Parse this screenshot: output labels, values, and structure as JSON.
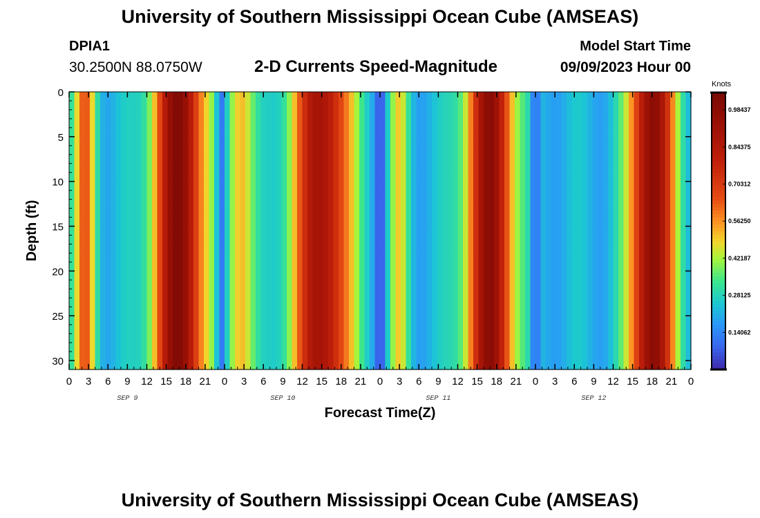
{
  "header": {
    "title": "University of Southern Mississippi Ocean Cube (AMSEAS)",
    "station_id": "DPIA1",
    "station_coords": "30.2500N  88.0750W",
    "subtitle": "2-D Currents Speed-Magnitude",
    "model_label": "Model Start Time",
    "model_date": "09/09/2023 Hour 00"
  },
  "footer": {
    "title": "University of Southern Mississippi Ocean Cube (AMSEAS)"
  },
  "chart_data": {
    "type": "heatmap",
    "title": "2-D Currents Speed-Magnitude",
    "xlabel": "Forecast Time(Z)",
    "ylabel": "Depth (ft)",
    "xlim": [
      0,
      96
    ],
    "ylim": [
      31,
      0
    ],
    "x_ticks": [
      "0",
      "3",
      "6",
      "9",
      "12",
      "15",
      "18",
      "21",
      "0",
      "3",
      "6",
      "9",
      "12",
      "15",
      "18",
      "21",
      "0",
      "3",
      "6",
      "9",
      "12",
      "15",
      "18",
      "21",
      "0",
      "3",
      "6",
      "9",
      "12",
      "15",
      "18",
      "21",
      "0"
    ],
    "y_ticks": [
      0,
      5,
      10,
      15,
      20,
      25,
      30
    ],
    "day_labels": [
      "SEP 9",
      "SEP 10",
      "SEP 11",
      "SEP 12"
    ],
    "colorbar": {
      "unit": "Knots",
      "min": 0,
      "max": 1.05,
      "tick_values": [
        0.98437,
        0.84375,
        0.70312,
        0.5625,
        0.42187,
        0.28125,
        0.14062
      ],
      "tick_labels": [
        "0.98437",
        "0.84375",
        "0.70312",
        "0.56250",
        "0.42187",
        "0.28125",
        "0.14062"
      ]
    },
    "speed_peaks": [
      {
        "time_hr": 2.5,
        "surface_speed": 0.62,
        "width_hr": 1.7,
        "taper_depth_ft": 26
      },
      {
        "time_hr": 17,
        "surface_speed": 1.0,
        "width_hr": 4.0,
        "taper_depth_ft": 22
      },
      {
        "time_hr": 26.5,
        "surface_speed": 0.55,
        "width_hr": 2.0,
        "taper_depth_ft": 12
      },
      {
        "time_hr": 39,
        "surface_speed": 0.9,
        "width_hr": 4.6,
        "taper_depth_ft": 22
      },
      {
        "time_hr": 51,
        "surface_speed": 0.46,
        "width_hr": 1.5,
        "taper_depth_ft": 28
      },
      {
        "time_hr": 65,
        "surface_speed": 0.95,
        "width_hr": 3.8,
        "taper_depth_ft": 22
      },
      {
        "time_hr": 90,
        "surface_speed": 1.0,
        "width_hr": 3.4,
        "taper_depth_ft": 19
      }
    ],
    "speed_lows": [
      {
        "time_hr": 23.5,
        "speed": 0.12
      },
      {
        "time_hr": 48,
        "speed": 0.05
      },
      {
        "time_hr": 72,
        "speed": 0.1
      }
    ]
  }
}
